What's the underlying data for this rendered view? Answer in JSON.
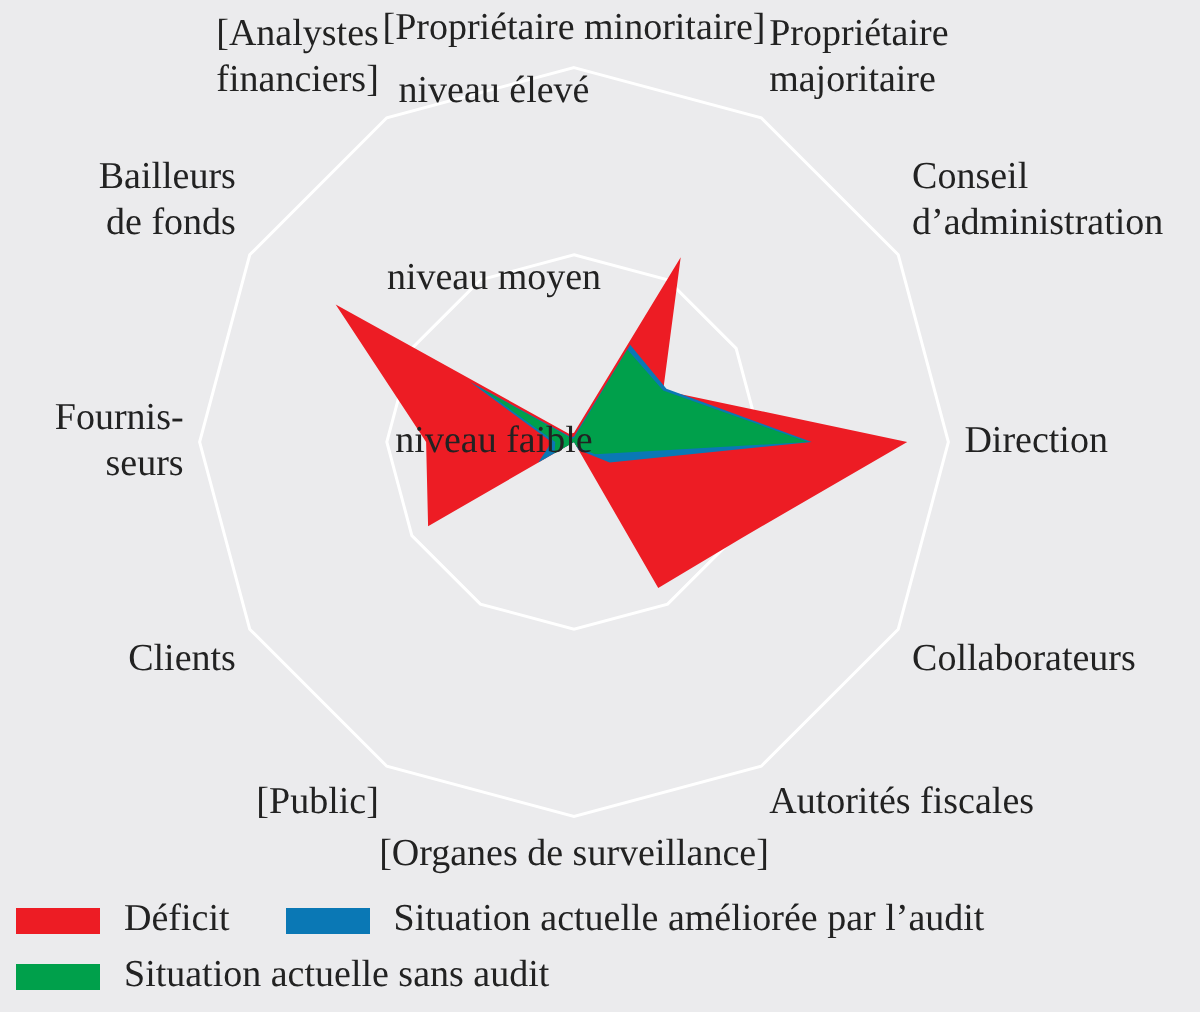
{
  "chart_data": {
    "type": "radar",
    "categories": [
      "[Propriétaire minoritaire]",
      "Propriétaire\nmajoritaire",
      "Conseil\nd’administration",
      "Direction",
      "Collaborateurs",
      "Autorités fiscales",
      "[Organes de surveillance]",
      "[Public]",
      "Clients",
      "Fournis-\nseurs",
      "Bailleurs\nde fonds",
      "[Analystes\nfinanciers]"
    ],
    "series": [
      {
        "name": "Déficit",
        "color": "#ed1c24",
        "values": [
          0.05,
          1.14,
          0.55,
          1.78,
          1.03,
          0.9,
          0,
          0,
          0.9,
          0.79,
          1.47,
          0.05
        ]
      },
      {
        "name": "Situation actuelle améliorée par l’audit",
        "color": "#0a78b5",
        "values": [
          0.03,
          0.6,
          0.57,
          1.27,
          0.22,
          0.05,
          0,
          0,
          0.22,
          0.12,
          0.64,
          0.03
        ]
      },
      {
        "name": "Situation actuelle sans audit",
        "color": "#00a04b",
        "values": [
          0.02,
          0.57,
          0.55,
          1.25,
          0.13,
          0.03,
          0,
          0,
          0.12,
          0.1,
          0.58,
          0.02
        ]
      }
    ],
    "ylim": [
      0,
      2
    ],
    "yticks": [
      {
        "value": 0,
        "label": "niveau faible"
      },
      {
        "value": 1,
        "label": "niveau moyen"
      },
      {
        "value": 2,
        "label": "niveau élevé"
      }
    ],
    "grid": true,
    "legend": "bottom"
  }
}
